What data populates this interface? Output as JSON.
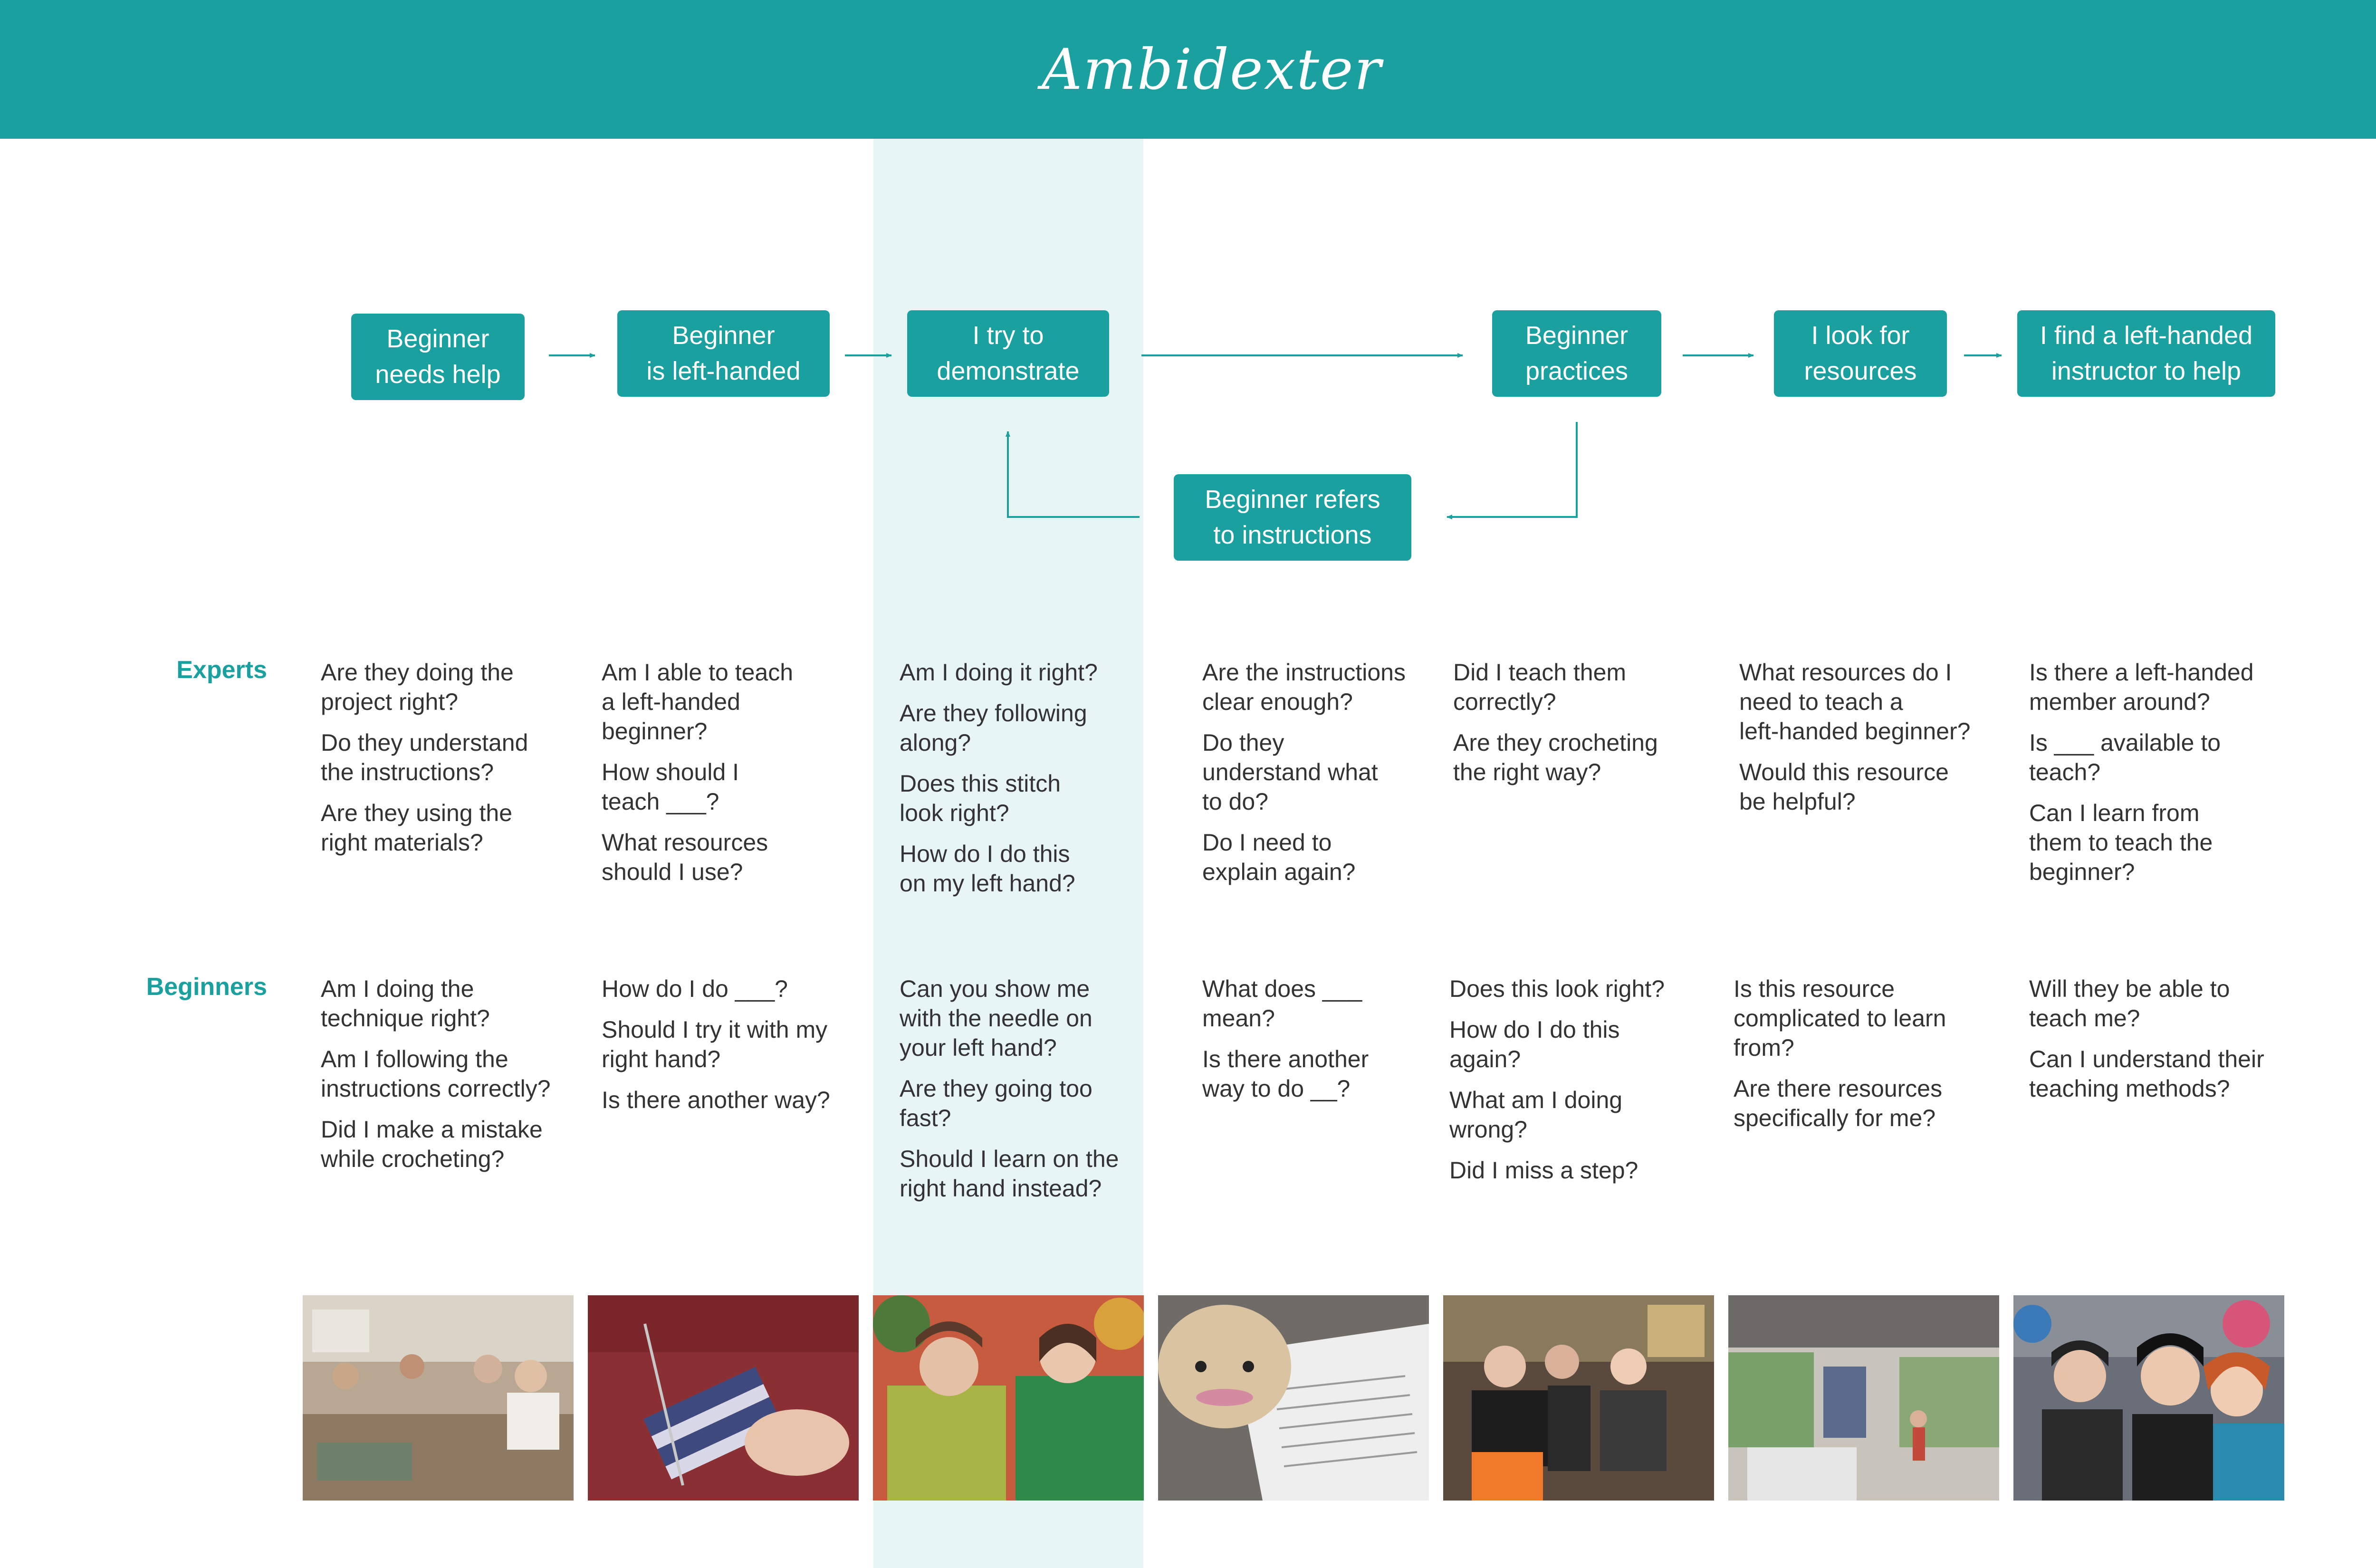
{
  "header": {
    "title": "Ambidexter"
  },
  "flow": {
    "steps": [
      "Beginner\nneeds help",
      "Beginner\nis left-handed",
      "I try to\ndemonstrate",
      "Beginner\npractices",
      "I look for\nresources",
      "I find a left-handed\ninstructor to help",
      "Beginner refers\nto instructions"
    ]
  },
  "rows": {
    "experts": "Experts",
    "beginners": "Beginners"
  },
  "experts": [
    [
      "Are they doing the\nproject right?",
      "Do they understand\nthe instructions?",
      "Are they using the\nright materials?"
    ],
    [
      "Am I able to teach\na left-handed\nbeginner?",
      "How should I\nteach ___?",
      "What resources\nshould I use?"
    ],
    [
      "Am I doing it right?",
      "Are they following\nalong?",
      "Does this stitch\nlook right?",
      "How do I do this\non my left hand?"
    ],
    [
      "Are the instructions\nclear enough?",
      "Do they\nunderstand what\nto do?",
      "Do I need to\nexplain again?"
    ],
    [
      "Did I teach them\ncorrectly?",
      "Are they crocheting\nthe right way?"
    ],
    [
      "What resources do I\nneed to teach a\nleft-handed beginner?",
      "Would this resource\nbe helpful?"
    ],
    [
      "Is there a left-handed\nmember around?",
      "Is ___ available to\nteach?",
      "Can I learn from\nthem to teach the\nbeginner?"
    ]
  ],
  "beginners": [
    [
      "Am I doing the\ntechnique right?",
      "Am I following the\ninstructions correctly?",
      "Did I make a mistake\nwhile crocheting?"
    ],
    [
      "How do I do ___?",
      "Should I try it with my\nright hand?",
      "Is there another way?"
    ],
    [
      "Can you show me\nwith the needle on\nyour left hand?",
      "Are they going too\nfast?",
      "Should I learn on the\nright hand instead?"
    ],
    [
      "What does ___\nmean?",
      "Is there another\nway to do __?"
    ],
    [
      "Does this look right?",
      "How do I do this\nagain?",
      "What am I doing\nwrong?",
      "Did I miss a step?"
    ],
    [
      "Is this resource\ncomplicated to learn\nfrom?",
      "Are there resources\nspecifically for me?"
    ],
    [
      "Will they be able to\nteach me?",
      "Can I understand their\nteaching methods?"
    ]
  ],
  "colors": {
    "accent": "#1aa09e",
    "highlight": "#e8f5f5",
    "text": "#333333"
  }
}
